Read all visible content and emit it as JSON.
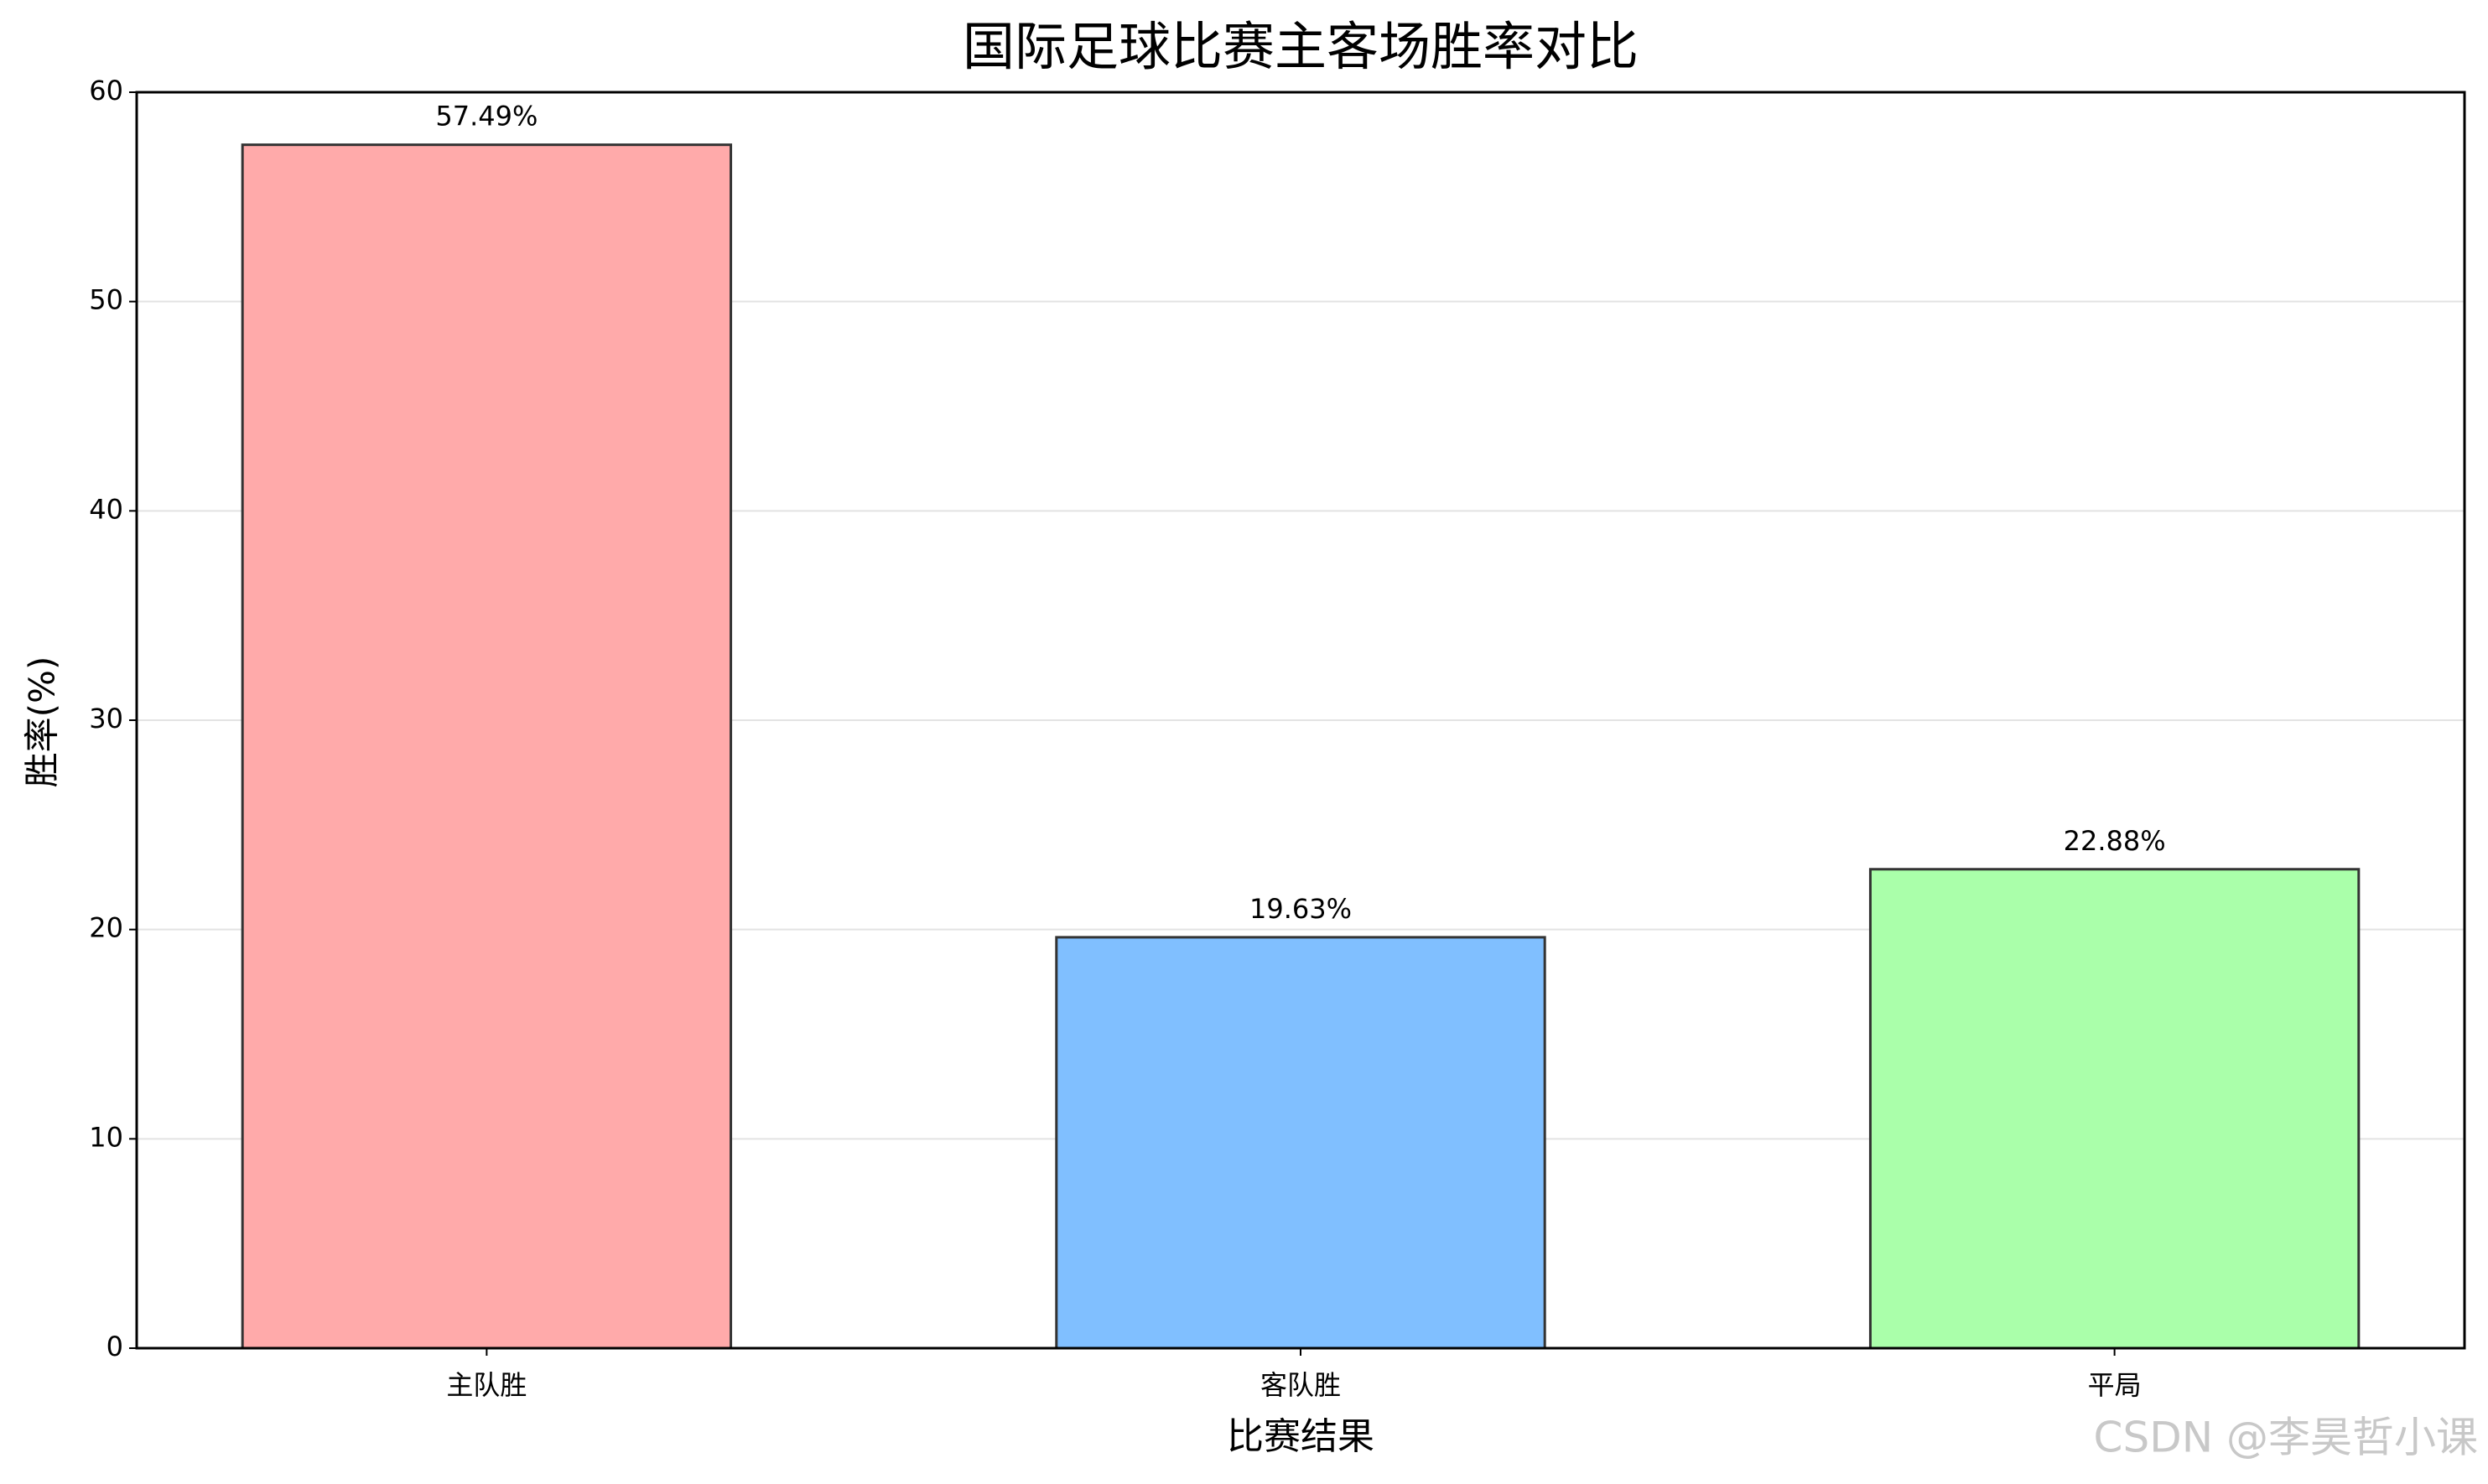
{
  "chart_data": {
    "type": "bar",
    "title": "国际足球比赛主客场胜率对比",
    "x_label": "比赛结果",
    "y_label": "胜率(%)",
    "categories": [
      "主队胜",
      "客队胜",
      "平局"
    ],
    "values": [
      57.49,
      19.63,
      22.88
    ],
    "value_labels": [
      "57.49%",
      "19.63%",
      "22.88%"
    ],
    "colors": [
      "#ffaaaa",
      "#80bfff",
      "#aaffaa"
    ],
    "ylim": [
      0,
      60
    ],
    "yticks": [
      0,
      10,
      20,
      30,
      40,
      50,
      60
    ],
    "grid": true
  },
  "watermark": "CSDN @李昊哲小课"
}
